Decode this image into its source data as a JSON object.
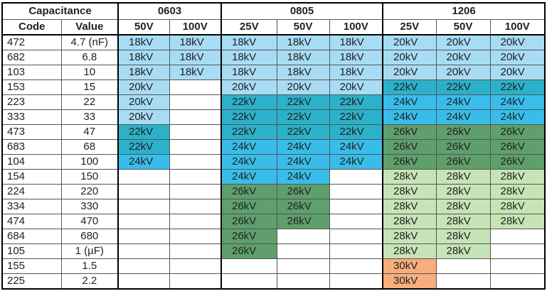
{
  "groups": [
    "Capacitance",
    "0603",
    "0805",
    "1206"
  ],
  "columns": [
    "Code",
    "Value",
    "50V",
    "100V",
    "25V",
    "50V",
    "100V",
    "25V",
    "50V",
    "100V"
  ],
  "cell_colors": {
    "18kV": "#a8dcf5",
    "20kV": "#a8dcf5",
    "22kV": "#2bb1c9",
    "24kV": "#38bdea",
    "26kV": "#5e9f6c",
    "28kV": "#c6e4b6",
    "30kV": "#f7ae7c"
  },
  "rows": [
    [
      "472",
      "4.7 (nF)",
      "18kV",
      "18kV",
      "18kV",
      "18kV",
      "18kV",
      "20kV",
      "20kV",
      "20kV"
    ],
    [
      "682",
      "6.8",
      "18kV",
      "18kV",
      "18kV",
      "18kV",
      "18kV",
      "20kV",
      "20kV",
      "20kV"
    ],
    [
      "103",
      "10",
      "18kV",
      "18kV",
      "18kV",
      "18kV",
      "18kV",
      "20kV",
      "20kV",
      "20kV"
    ],
    [
      "153",
      "15",
      "20kV",
      null,
      "20kV",
      "20kV",
      "20kV",
      "22kV",
      "22kV",
      "22kV"
    ],
    [
      "223",
      "22",
      "20kV",
      null,
      "22kV",
      "22kV",
      "22kV",
      "24kV",
      "24kV",
      "24kV"
    ],
    [
      "333",
      "33",
      "20kV",
      null,
      "22kV",
      "22kV",
      "22kV",
      "24kV",
      "24kV",
      "24kV"
    ],
    [
      "473",
      "47",
      "22kV",
      null,
      "22kV",
      "22kV",
      "22kV",
      "26kV",
      "26kV",
      "26kV"
    ],
    [
      "683",
      "68",
      "22kV",
      null,
      "24kV",
      "24kV",
      "24kV",
      "26kV",
      "26kV",
      "26kV"
    ],
    [
      "104",
      "100",
      "24kV",
      null,
      "24kV",
      "24kV",
      "24kV",
      "26kV",
      "26kV",
      "26kV"
    ],
    [
      "154",
      "150",
      null,
      null,
      "24kV",
      "24kV",
      null,
      "28kV",
      "28kV",
      "28kV"
    ],
    [
      "224",
      "220",
      null,
      null,
      "26kV",
      "26kV",
      null,
      "28kV",
      "28kV",
      "28kV"
    ],
    [
      "334",
      "330",
      null,
      null,
      "26kV",
      "26kV",
      null,
      "28kV",
      "28kV",
      "28kV"
    ],
    [
      "474",
      "470",
      null,
      null,
      "26kV",
      "26kV",
      null,
      "28kV",
      "28kV",
      "28kV"
    ],
    [
      "684",
      "680",
      null,
      null,
      "26kV",
      null,
      null,
      "28kV",
      "28kV",
      null
    ],
    [
      "105",
      "1 (µF)",
      null,
      null,
      "26kV",
      null,
      null,
      "28kV",
      "28kV",
      null
    ],
    [
      "155",
      "1.5",
      null,
      null,
      null,
      null,
      null,
      "30kV",
      null,
      null
    ],
    [
      "225",
      "2.2",
      null,
      null,
      null,
      null,
      null,
      "30kV",
      null,
      null
    ]
  ]
}
